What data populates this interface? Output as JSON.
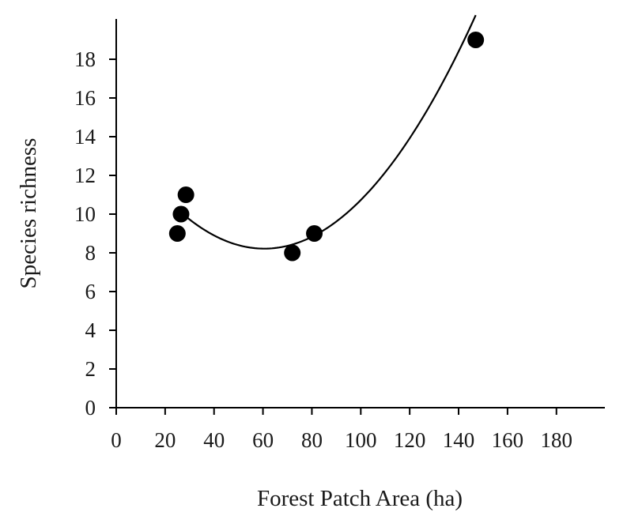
{
  "chart_data": {
    "type": "scatter",
    "title": "",
    "xlabel": "Forest Patch Area (ha)",
    "ylabel": "Species richness",
    "xlim": [
      0,
      195
    ],
    "ylim": [
      0,
      20
    ],
    "xticks": [
      0,
      20,
      40,
      60,
      80,
      100,
      120,
      140,
      160,
      180
    ],
    "yticks": [
      0,
      2,
      4,
      6,
      8,
      10,
      12,
      14,
      16,
      18
    ],
    "xtick_labels": [
      "0",
      "20",
      "40",
      "60",
      "80",
      "100",
      "120",
      "140",
      "160",
      "180"
    ],
    "ytick_labels": [
      "0",
      "2",
      "4",
      "6",
      "8",
      "10",
      "12",
      "14",
      "16",
      "18"
    ],
    "grid": false,
    "legend": "none",
    "series": [
      {
        "points": [
          {
            "x": 25,
            "y": 9
          },
          {
            "x": 26.5,
            "y": 10
          },
          {
            "x": 28.5,
            "y": 11
          },
          {
            "x": 72,
            "y": 8
          },
          {
            "x": 81,
            "y": 9
          },
          {
            "x": 147,
            "y": 19
          }
        ],
        "marker_color": "#000000"
      }
    ],
    "fit": {
      "type": "quadratic",
      "coefficients": {
        "a": 0.001614,
        "b": -0.19549,
        "c": 14.1365
      },
      "x_range": [
        28,
        147
      ],
      "line_color": "#000000"
    }
  }
}
